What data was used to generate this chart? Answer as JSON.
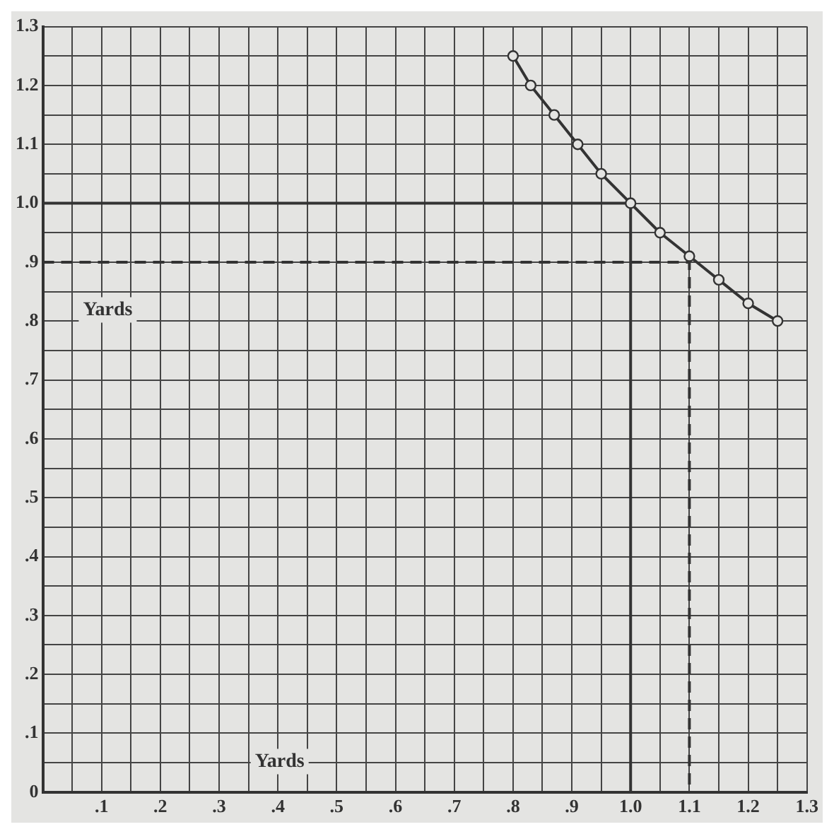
{
  "chart_data": {
    "type": "line",
    "xlabel": "Yards",
    "ylabel": "Yards",
    "xlim": [
      0,
      1.3
    ],
    "ylim": [
      0,
      1.3
    ],
    "xticks": [
      {
        "value": 0,
        "label": null
      },
      {
        "value": 0.05,
        "label": null
      },
      {
        "value": 0.1,
        "label": ".1"
      },
      {
        "value": 0.15,
        "label": null
      },
      {
        "value": 0.2,
        "label": ".2"
      },
      {
        "value": 0.25,
        "label": null
      },
      {
        "value": 0.3,
        "label": ".3"
      },
      {
        "value": 0.35,
        "label": null
      },
      {
        "value": 0.4,
        "label": ".4"
      },
      {
        "value": 0.45,
        "label": null
      },
      {
        "value": 0.5,
        "label": ".5"
      },
      {
        "value": 0.55,
        "label": null
      },
      {
        "value": 0.6,
        "label": ".6"
      },
      {
        "value": 0.65,
        "label": null
      },
      {
        "value": 0.7,
        "label": ".7"
      },
      {
        "value": 0.75,
        "label": null
      },
      {
        "value": 0.8,
        "label": ".8"
      },
      {
        "value": 0.85,
        "label": null
      },
      {
        "value": 0.9,
        "label": ".9"
      },
      {
        "value": 0.95,
        "label": null
      },
      {
        "value": 1.0,
        "label": "1.0"
      },
      {
        "value": 1.05,
        "label": null
      },
      {
        "value": 1.1,
        "label": "1.1"
      },
      {
        "value": 1.15,
        "label": null
      },
      {
        "value": 1.2,
        "label": "1.2"
      },
      {
        "value": 1.25,
        "label": null
      },
      {
        "value": 1.3,
        "label": "1.3"
      }
    ],
    "yticks": [
      0,
      {
        "value": 0.05,
        "label": null
      },
      {
        "value": 0.1,
        "label": ".1"
      },
      {
        "value": 0.15,
        "label": null
      },
      {
        "value": 0.2,
        "label": ".2"
      },
      {
        "value": 0.25,
        "label": null
      },
      {
        "value": 0.3,
        "label": ".3"
      },
      {
        "value": 0.35,
        "label": null
      },
      {
        "value": 0.4,
        "label": ".4"
      },
      {
        "value": 0.45,
        "label": null
      },
      {
        "value": 0.5,
        "label": ".5"
      },
      {
        "value": 0.55,
        "label": null
      },
      {
        "value": 0.6,
        "label": ".6"
      },
      {
        "value": 0.65,
        "label": null
      },
      {
        "value": 0.7,
        "label": ".7"
      },
      {
        "value": 0.75,
        "label": null
      },
      {
        "value": 0.8,
        "label": ".8"
      },
      {
        "value": 0.85,
        "label": null
      },
      {
        "value": 0.9,
        "label": ".9"
      },
      {
        "value": 0.95,
        "label": null
      },
      {
        "value": 1.0,
        "label": "1.0"
      },
      {
        "value": 1.05,
        "label": null
      },
      {
        "value": 1.1,
        "label": "1.1"
      },
      {
        "value": 1.15,
        "label": null
      },
      {
        "value": 1.2,
        "label": "1.2"
      },
      {
        "value": 1.25,
        "label": null
      },
      {
        "value": 1.3,
        "label": "1.3"
      }
    ],
    "grid": true,
    "legend": false,
    "series": [
      {
        "color": "#333333",
        "marker": "circle",
        "line_style": "solid",
        "x": [
          0.8,
          0.83,
          0.87,
          0.91,
          0.95,
          1.0,
          1.05,
          1.1,
          1.15,
          1.2,
          1.25
        ],
        "values": [
          1.25,
          1.2,
          1.15,
          1.1,
          1.05,
          1.0,
          0.95,
          0.91,
          0.87,
          0.83,
          0.8
        ]
      },
      {
        "color": "#333333",
        "marker": "none",
        "line_style": "solid",
        "x": [
          0,
          1.0,
          1.0
        ],
        "values": [
          1.0,
          1.0,
          0
        ]
      },
      {
        "color": "#333333",
        "marker": "none",
        "line_style": "dashed",
        "x": [
          0,
          1.1,
          1.1
        ],
        "values": [
          0.9,
          0.9,
          0
        ]
      }
    ]
  }
}
